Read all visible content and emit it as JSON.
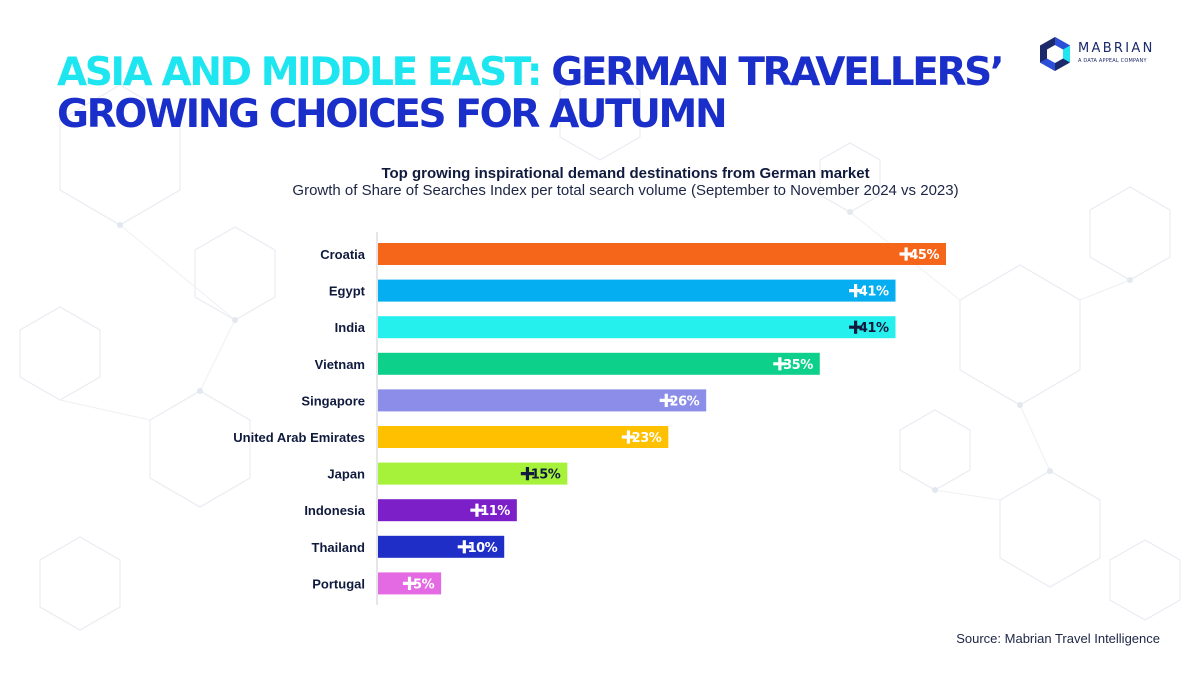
{
  "header": {
    "title_accent": "ASIA AND MIDDLE EAST:",
    "title_main": "GERMAN TRAVELLERS’ GROWING CHOICES FOR AUTUMN"
  },
  "logo": {
    "name": "MABRIAN",
    "tagline": "A DATA APPEAL COMPANY",
    "colors": [
      "#1c2a6b",
      "#2b4fd8",
      "#1ee6f0"
    ]
  },
  "chart_data": {
    "type": "bar",
    "orientation": "horizontal",
    "title": "Top growing inspirational demand destinations from German market",
    "subtitle": "Growth of Share of Searches Index per total search volume (September to November 2024 vs 2023)",
    "categories": [
      "Croatia",
      "Egypt",
      "India",
      "Vietnam",
      "Singapore",
      "United Arab Emirates",
      "Japan",
      "Indonesia",
      "Thailand",
      "Portugal"
    ],
    "values": [
      45,
      41,
      41,
      35,
      26,
      23,
      15,
      11,
      10,
      5
    ],
    "value_labels": [
      "45%",
      "41%",
      "41%",
      "35%",
      "26%",
      "23%",
      "15%",
      "11%",
      "10%",
      "5%"
    ],
    "colors": [
      "#f5661a",
      "#05aef0",
      "#26f0ee",
      "#0dd18b",
      "#8b8de9",
      "#ffc000",
      "#a6f23a",
      "#7c1fc9",
      "#1f2ec6",
      "#e46ae3"
    ],
    "label_colors": [
      "#ffffff",
      "#ffffff",
      "#101a3d",
      "#ffffff",
      "#ffffff",
      "#ffffff",
      "#101a3d",
      "#ffffff",
      "#ffffff",
      "#ffffff"
    ],
    "xlim": [
      0,
      45
    ],
    "grid": false,
    "legend": "none"
  },
  "footer": {
    "source": "Source: Mabrian Travel Intelligence"
  }
}
